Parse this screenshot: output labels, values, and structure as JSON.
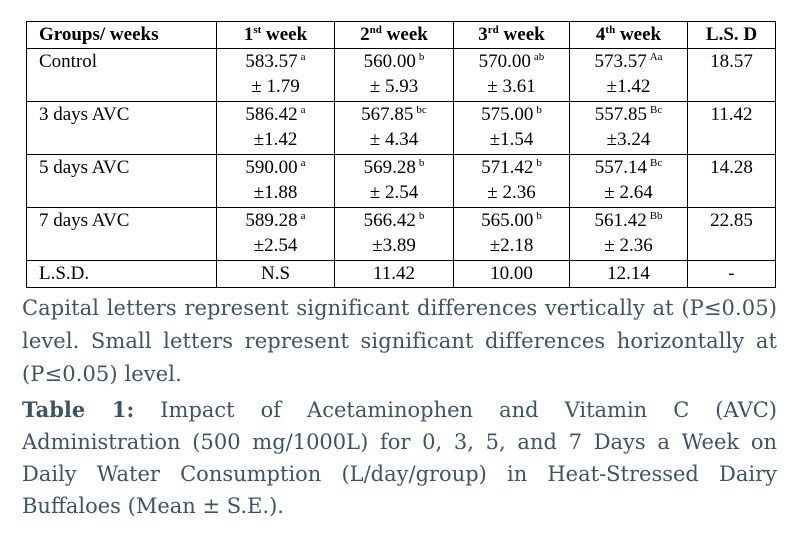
{
  "table": {
    "headers": [
      {
        "main": "Groups/ weeks",
        "sup": ""
      },
      {
        "main": "1",
        "sup": "st",
        "tail": " week"
      },
      {
        "main": "2",
        "sup": "nd",
        "tail": " week"
      },
      {
        "main": "3",
        "sup": "rd",
        "tail": " week"
      },
      {
        "main": "4",
        "sup": "th",
        "tail": " week"
      },
      {
        "main": "L.S. D",
        "sup": ""
      }
    ],
    "rows": [
      {
        "group": "Control",
        "cells": [
          {
            "mean": "583.57",
            "sig": "a",
            "se": "± 1.79"
          },
          {
            "mean": "560.00",
            "sig": "b",
            "se": "± 5.93"
          },
          {
            "mean": "570.00",
            "sig": "ab",
            "se": "± 3.61"
          },
          {
            "mean": "573.57",
            "sig": "Aa",
            "se": "±1.42"
          }
        ],
        "lsd": "18.57"
      },
      {
        "group": "3 days AVC",
        "cells": [
          {
            "mean": "586.42",
            "sig": "a",
            "se": "±1.42"
          },
          {
            "mean": "567.85",
            "sig": "bc",
            "se": "± 4.34"
          },
          {
            "mean": "575.00",
            "sig": "b",
            "se": "±1.54"
          },
          {
            "mean": "557.85",
            "sig": "Bc",
            "se": "±3.24"
          }
        ],
        "lsd": "11.42"
      },
      {
        "group": "5 days AVC",
        "cells": [
          {
            "mean": "590.00",
            "sig": "a",
            "se": "±1.88"
          },
          {
            "mean": "569.28",
            "sig": "b",
            "se": "± 2.54"
          },
          {
            "mean": "571.42",
            "sig": "b",
            "se": "± 2.36"
          },
          {
            "mean": "557.14",
            "sig": "Bc",
            "se": "± 2.64"
          }
        ],
        "lsd": "14.28"
      },
      {
        "group": "7 days AVC",
        "cells": [
          {
            "mean": "589.28",
            "sig": "a",
            "se": "±2.54"
          },
          {
            "mean": "566.42",
            "sig": "b",
            "se": "±3.89"
          },
          {
            "mean": "565.00",
            "sig": "b",
            "se": "±2.18"
          },
          {
            "mean": "561.42",
            "sig": "Bb",
            "se": "± 2.36"
          }
        ],
        "lsd": "22.85"
      }
    ],
    "lsd_row": {
      "label": "L.S.D.",
      "values": [
        "N.S",
        "11.42",
        "10.00",
        "12.14",
        "-"
      ]
    }
  },
  "notes": "Capital letters represent significant differences vertically at (P≤0.05) level. Small letters represent significant differences horizontally at (P≤0.05) level.",
  "caption": {
    "label": "Table 1:",
    "text": " Impact of Acetaminophen and Vitamin C (AVC) Administration (500 mg/1000L) for 0, 3, 5, and 7 Days a Week on Daily Water Consumption (L/day/group) in Heat-Stressed Dairy Buffaloes (Mean ± S.E.)."
  },
  "colors": {
    "caption_text": "#3d5366",
    "table_text": "#000000",
    "border": "#000000"
  }
}
